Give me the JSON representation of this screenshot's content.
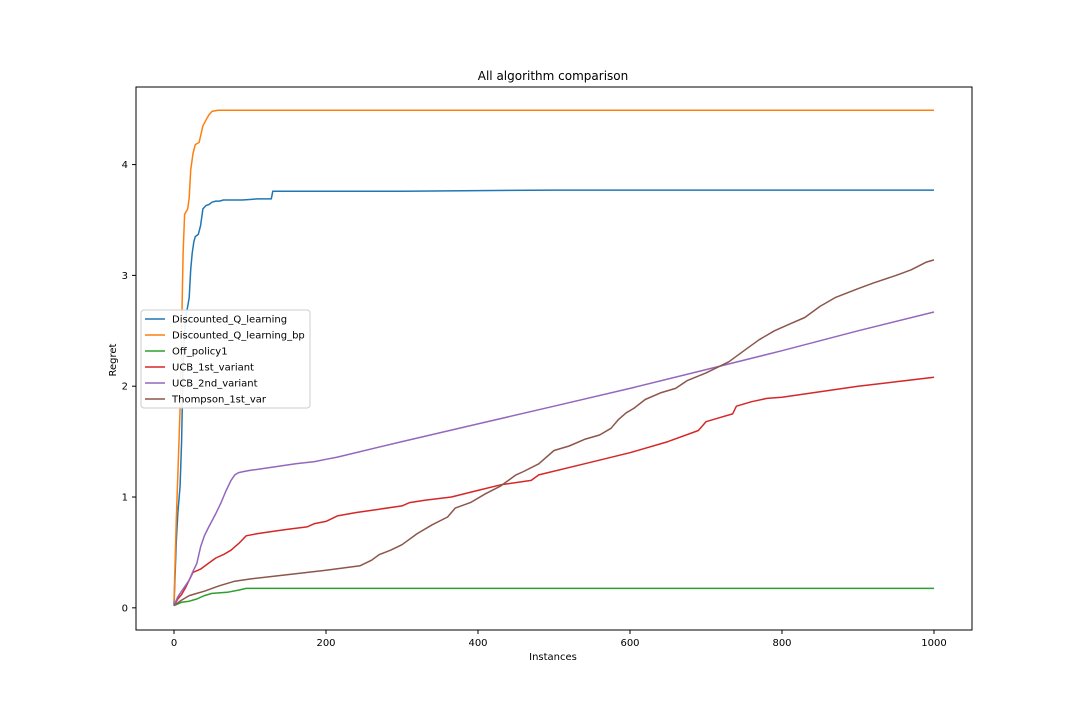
{
  "chart_data": {
    "type": "line",
    "title": "All algorithm comparison",
    "xlabel": "Instances",
    "ylabel": "Regret",
    "xlim": [
      -50,
      1050
    ],
    "ylim": [
      -0.2,
      4.7
    ],
    "xticks": [
      0,
      200,
      400,
      600,
      800,
      1000
    ],
    "yticks": [
      0,
      1,
      2,
      3,
      4
    ],
    "grid": false,
    "legend_placement": "center-left",
    "series": [
      {
        "name": "Discounted_Q_learning",
        "color": "#1f77b4",
        "points": [
          [
            0,
            0.02
          ],
          [
            3,
            0.6
          ],
          [
            5,
            0.85
          ],
          [
            8,
            1.1
          ],
          [
            10,
            1.5
          ],
          [
            12,
            2.2
          ],
          [
            14,
            2.5
          ],
          [
            16,
            2.65
          ],
          [
            18,
            2.72
          ],
          [
            20,
            2.8
          ],
          [
            22,
            3.05
          ],
          [
            24,
            3.2
          ],
          [
            26,
            3.3
          ],
          [
            28,
            3.35
          ],
          [
            32,
            3.37
          ],
          [
            35,
            3.45
          ],
          [
            38,
            3.6
          ],
          [
            42,
            3.63
          ],
          [
            46,
            3.64
          ],
          [
            50,
            3.66
          ],
          [
            55,
            3.67
          ],
          [
            60,
            3.67
          ],
          [
            65,
            3.68
          ],
          [
            75,
            3.68
          ],
          [
            90,
            3.68
          ],
          [
            110,
            3.69
          ],
          [
            128,
            3.69
          ],
          [
            130,
            3.76
          ],
          [
            300,
            3.76
          ],
          [
            500,
            3.77
          ],
          [
            1000,
            3.77
          ]
        ]
      },
      {
        "name": "Discounted_Q_learning_bp",
        "color": "#ff7f0e",
        "points": [
          [
            0,
            0.05
          ],
          [
            3,
            0.8
          ],
          [
            6,
            1.4
          ],
          [
            8,
            1.8
          ],
          [
            10,
            2.5
          ],
          [
            12,
            3.2
          ],
          [
            14,
            3.55
          ],
          [
            18,
            3.6
          ],
          [
            20,
            3.7
          ],
          [
            22,
            3.95
          ],
          [
            25,
            4.1
          ],
          [
            28,
            4.18
          ],
          [
            33,
            4.2
          ],
          [
            38,
            4.35
          ],
          [
            42,
            4.4
          ],
          [
            46,
            4.45
          ],
          [
            50,
            4.48
          ],
          [
            58,
            4.49
          ],
          [
            80,
            4.49
          ],
          [
            300,
            4.49
          ],
          [
            1000,
            4.49
          ]
        ]
      },
      {
        "name": "Off_policy1",
        "color": "#2ca02c",
        "points": [
          [
            0,
            0.02
          ],
          [
            10,
            0.05
          ],
          [
            20,
            0.06
          ],
          [
            30,
            0.08
          ],
          [
            40,
            0.11
          ],
          [
            50,
            0.13
          ],
          [
            70,
            0.14
          ],
          [
            85,
            0.16
          ],
          [
            95,
            0.175
          ],
          [
            130,
            0.175
          ],
          [
            300,
            0.175
          ],
          [
            600,
            0.175
          ],
          [
            1000,
            0.175
          ]
        ]
      },
      {
        "name": "UCB_1st_variant",
        "color": "#d62728",
        "points": [
          [
            0,
            0.02
          ],
          [
            5,
            0.08
          ],
          [
            10,
            0.12
          ],
          [
            15,
            0.18
          ],
          [
            20,
            0.25
          ],
          [
            25,
            0.32
          ],
          [
            35,
            0.35
          ],
          [
            45,
            0.4
          ],
          [
            55,
            0.45
          ],
          [
            65,
            0.48
          ],
          [
            75,
            0.52
          ],
          [
            85,
            0.58
          ],
          [
            95,
            0.65
          ],
          [
            110,
            0.67
          ],
          [
            130,
            0.69
          ],
          [
            150,
            0.71
          ],
          [
            175,
            0.73
          ],
          [
            185,
            0.76
          ],
          [
            200,
            0.78
          ],
          [
            215,
            0.83
          ],
          [
            240,
            0.86
          ],
          [
            270,
            0.89
          ],
          [
            300,
            0.92
          ],
          [
            310,
            0.95
          ],
          [
            330,
            0.97
          ],
          [
            365,
            1.0
          ],
          [
            400,
            1.06
          ],
          [
            430,
            1.11
          ],
          [
            470,
            1.15
          ],
          [
            480,
            1.2
          ],
          [
            540,
            1.3
          ],
          [
            600,
            1.4
          ],
          [
            650,
            1.5
          ],
          [
            690,
            1.6
          ],
          [
            700,
            1.68
          ],
          [
            720,
            1.72
          ],
          [
            735,
            1.75
          ],
          [
            740,
            1.82
          ],
          [
            760,
            1.86
          ],
          [
            780,
            1.89
          ],
          [
            800,
            1.9
          ],
          [
            850,
            1.95
          ],
          [
            900,
            2.0
          ],
          [
            950,
            2.04
          ],
          [
            1000,
            2.08
          ]
        ]
      },
      {
        "name": "UCB_2nd_variant",
        "color": "#9467bd",
        "points": [
          [
            0,
            0.02
          ],
          [
            5,
            0.1
          ],
          [
            10,
            0.15
          ],
          [
            15,
            0.2
          ],
          [
            20,
            0.25
          ],
          [
            25,
            0.33
          ],
          [
            30,
            0.4
          ],
          [
            35,
            0.55
          ],
          [
            40,
            0.65
          ],
          [
            45,
            0.72
          ],
          [
            55,
            0.85
          ],
          [
            62,
            0.95
          ],
          [
            68,
            1.05
          ],
          [
            75,
            1.15
          ],
          [
            80,
            1.2
          ],
          [
            85,
            1.22
          ],
          [
            92,
            1.23
          ],
          [
            100,
            1.24
          ],
          [
            130,
            1.27
          ],
          [
            160,
            1.3
          ],
          [
            185,
            1.32
          ],
          [
            200,
            1.34
          ],
          [
            215,
            1.36
          ],
          [
            300,
            1.5
          ],
          [
            400,
            1.66
          ],
          [
            500,
            1.82
          ],
          [
            600,
            1.98
          ],
          [
            700,
            2.15
          ],
          [
            800,
            2.32
          ],
          [
            900,
            2.5
          ],
          [
            1000,
            2.67
          ]
        ]
      },
      {
        "name": "Thompson_1st_var",
        "color": "#8c564b",
        "points": [
          [
            0,
            0.02
          ],
          [
            10,
            0.07
          ],
          [
            20,
            0.11
          ],
          [
            30,
            0.13
          ],
          [
            40,
            0.15
          ],
          [
            60,
            0.2
          ],
          [
            80,
            0.24
          ],
          [
            100,
            0.26
          ],
          [
            150,
            0.3
          ],
          [
            200,
            0.34
          ],
          [
            245,
            0.38
          ],
          [
            260,
            0.43
          ],
          [
            270,
            0.48
          ],
          [
            285,
            0.52
          ],
          [
            300,
            0.57
          ],
          [
            320,
            0.67
          ],
          [
            340,
            0.75
          ],
          [
            360,
            0.82
          ],
          [
            370,
            0.9
          ],
          [
            390,
            0.95
          ],
          [
            410,
            1.03
          ],
          [
            430,
            1.1
          ],
          [
            450,
            1.2
          ],
          [
            460,
            1.23
          ],
          [
            480,
            1.3
          ],
          [
            500,
            1.42
          ],
          [
            520,
            1.46
          ],
          [
            540,
            1.52
          ],
          [
            560,
            1.56
          ],
          [
            575,
            1.62
          ],
          [
            585,
            1.7
          ],
          [
            595,
            1.76
          ],
          [
            605,
            1.8
          ],
          [
            620,
            1.88
          ],
          [
            640,
            1.94
          ],
          [
            660,
            1.98
          ],
          [
            675,
            2.05
          ],
          [
            700,
            2.12
          ],
          [
            730,
            2.22
          ],
          [
            750,
            2.32
          ],
          [
            770,
            2.42
          ],
          [
            790,
            2.5
          ],
          [
            810,
            2.56
          ],
          [
            830,
            2.62
          ],
          [
            850,
            2.72
          ],
          [
            870,
            2.8
          ],
          [
            900,
            2.88
          ],
          [
            920,
            2.93
          ],
          [
            950,
            3.0
          ],
          [
            970,
            3.05
          ],
          [
            990,
            3.12
          ],
          [
            1000,
            3.14
          ]
        ]
      }
    ]
  }
}
